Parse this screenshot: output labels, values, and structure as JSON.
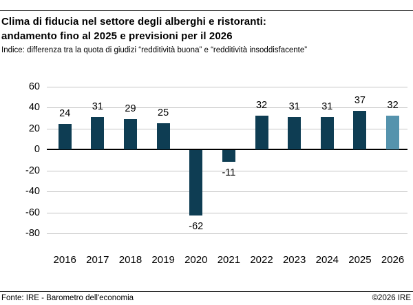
{
  "header": {
    "title_line1": "Clima di fiducia nel settore degli alberghi e ristoranti:",
    "title_line2": "andamento fino al 2025 e previsioni per il 2026",
    "subtitle": "Indice: differenza tra la quota di giudizi “redditività buona” e “redditività insoddisfacente”"
  },
  "footer": {
    "source": "Fonte: IRE - Barometro dell'economia",
    "copyright": "©2026 IRE"
  },
  "chart_data": {
    "type": "bar",
    "title": "Clima di fiducia nel settore degli alberghi e ristoranti: andamento fino al 2025 e previsioni per il 2026",
    "subtitle": "Indice: differenza tra la quota di giudizi “redditività buona” e “redditività insoddisfacente”",
    "categories": [
      "2016",
      "2017",
      "2018",
      "2019",
      "2020",
      "2021",
      "2022",
      "2023",
      "2024",
      "2025",
      "2026"
    ],
    "values": [
      24,
      31,
      29,
      25,
      -62,
      -11,
      32,
      31,
      31,
      37,
      32
    ],
    "series_note": "2026 is a forecast bar shown in a lighter color",
    "bar_colors": [
      "#0e3d53",
      "#0e3d53",
      "#0e3d53",
      "#0e3d53",
      "#0e3d53",
      "#0e3d53",
      "#0e3d53",
      "#0e3d53",
      "#0e3d53",
      "#0e3d53",
      "#5593ad"
    ],
    "colors": {
      "actual": "#0e3d53",
      "forecast": "#5593ad",
      "gridline": "#c4c4c4",
      "zero_line": "#000000",
      "text": "#000000"
    },
    "xlabel": "",
    "ylabel": "",
    "ylim": [
      -80,
      60
    ],
    "yticks": [
      60,
      40,
      20,
      0,
      -20,
      -40,
      -60,
      -80
    ],
    "grid": true,
    "legend": false,
    "value_labels": true
  }
}
